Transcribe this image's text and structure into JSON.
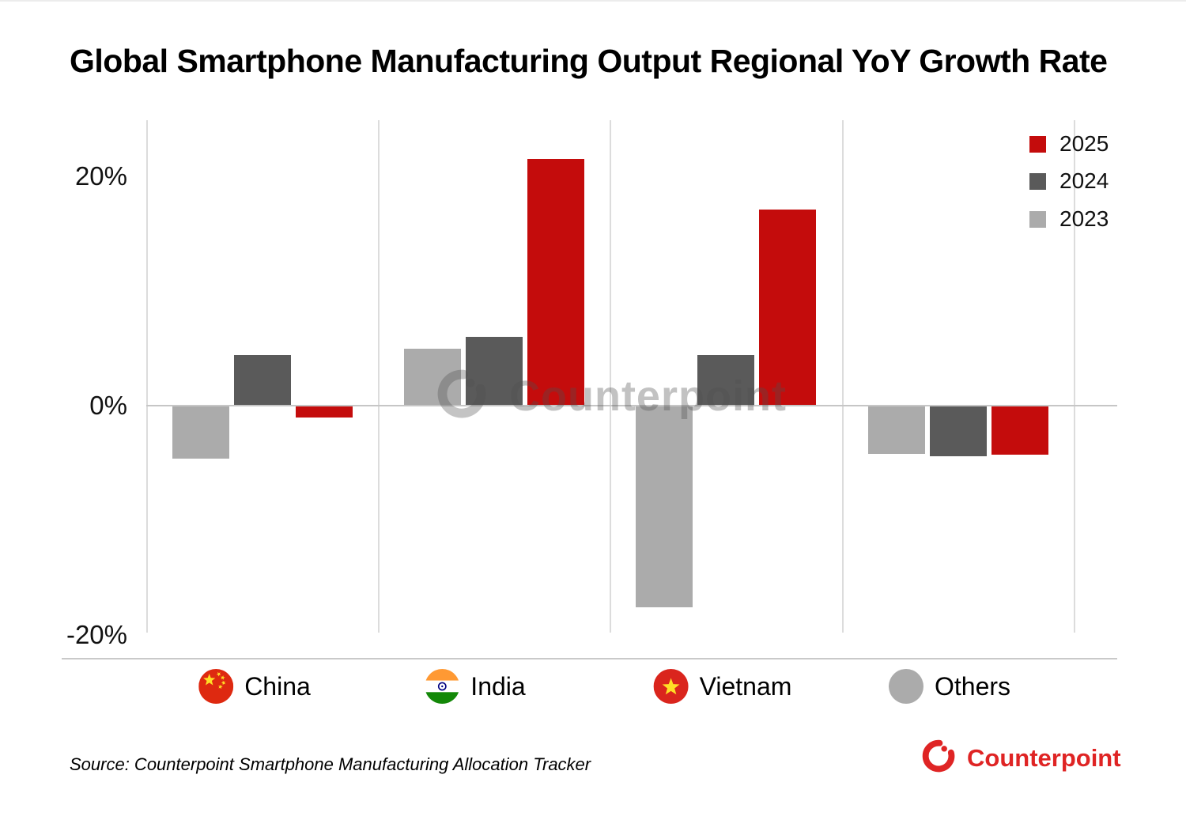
{
  "title": "Global Smartphone Manufacturing Output Regional YoY Growth Rate",
  "chart_data": {
    "type": "bar",
    "title": "Global Smartphone Manufacturing Output Regional YoY Growth Rate",
    "unit": "%",
    "categories": [
      {
        "label": "China",
        "icon": "china-flag-icon"
      },
      {
        "label": "India",
        "icon": "india-flag-icon"
      },
      {
        "label": "Vietnam",
        "icon": "vietnam-flag-icon"
      },
      {
        "label": "Others",
        "icon": "others-circle-icon"
      }
    ],
    "series": [
      {
        "name": "2023",
        "color": "#ABABAB",
        "values": [
          -4.6,
          5.0,
          -17.6,
          -4.2
        ]
      },
      {
        "name": "2024",
        "color": "#5A5A5A",
        "values": [
          4.4,
          6.0,
          4.4,
          -4.4
        ]
      },
      {
        "name": "2025",
        "color": "#C40C0C",
        "values": [
          -1.0,
          21.5,
          17.1,
          -4.3
        ]
      }
    ],
    "legend_order": [
      "2025",
      "2024",
      "2023"
    ],
    "legend_position": "top-right",
    "y_ticks": [
      {
        "label": "20%",
        "value": 20
      },
      {
        "label": "0%",
        "value": 0
      },
      {
        "label": "-20%",
        "value": -20
      }
    ],
    "ylim": [
      -20,
      25
    ],
    "grid": "vertical-group-separators-only"
  },
  "watermark": {
    "text": "Counterpoint"
  },
  "footer": {
    "source": "Source: Counterpoint Smartphone Manufacturing Allocation Tracker",
    "brand": "Counterpoint",
    "brand_color": "#df2424"
  }
}
